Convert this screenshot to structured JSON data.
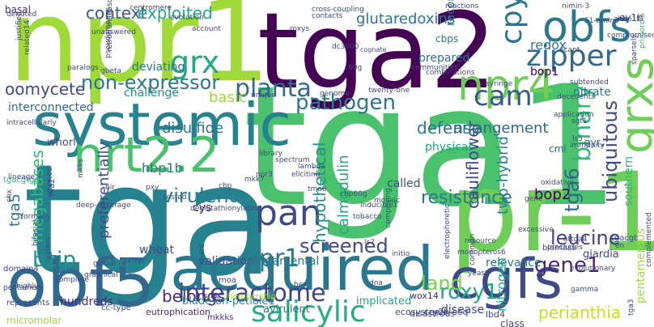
{
  "cloud": {
    "words": [
      {
        "text": "tga",
        "color": "#26828e"
      },
      {
        "text": "tga1",
        "color": "#4ac16d"
      },
      {
        "text": "tga2",
        "color": "#440154"
      },
      {
        "text": "npr1",
        "color": "#a0da39"
      },
      {
        "text": "pr-1",
        "color": "#6ece58"
      },
      {
        "text": "obf5",
        "color": "#31688e"
      },
      {
        "text": "obfs",
        "color": "#2a788e"
      },
      {
        "text": "acquired",
        "color": "#2a788e"
      },
      {
        "text": "systemic",
        "color": "#26828e"
      },
      {
        "text": "cgfs",
        "color": "#3e4a89"
      },
      {
        "text": "nrt2.2",
        "color": "#4ac16d"
      },
      {
        "text": "npr4",
        "color": "#6ece58"
      },
      {
        "text": "grxs",
        "color": "#6ece58"
      },
      {
        "text": "salicylic",
        "color": "#27ad81"
      },
      {
        "text": "interactome",
        "color": "#414487"
      },
      {
        "text": "cpyc",
        "color": "#2a788e"
      },
      {
        "text": "grx",
        "color": "#22a884"
      },
      {
        "text": "zipper",
        "color": "#31688e"
      },
      {
        "text": "cam",
        "color": "#39568c"
      },
      {
        "text": "planta",
        "color": "#31688e"
      },
      {
        "text": "pathogen",
        "color": "#2a788e"
      },
      {
        "text": "non-expressor",
        "color": "#2a788e"
      },
      {
        "text": "pan",
        "color": "#3e4a89"
      },
      {
        "text": "pr1",
        "color": "#2a788e"
      },
      {
        "text": "bzip",
        "color": "#21918c"
      },
      {
        "text": "leucine",
        "color": "#414487"
      },
      {
        "text": "gene1",
        "color": "#482878"
      },
      {
        "text": "roxy1",
        "color": "#22a884"
      },
      {
        "text": "binary",
        "color": "#35b779"
      },
      {
        "text": "tga6",
        "color": "#31688e"
      },
      {
        "text": "screened",
        "color": "#3e4a89"
      },
      {
        "text": "resistance",
        "color": "#2a788e"
      },
      {
        "text": "land",
        "color": "#7ad151"
      },
      {
        "text": "virulent",
        "color": "#26828e"
      },
      {
        "text": "belongs",
        "color": "#472d7b"
      },
      {
        "text": "disulfide",
        "color": "#2a788e"
      },
      {
        "text": "defense",
        "color": "#2a788e"
      },
      {
        "text": "ubiquitous",
        "color": "#3e4a89"
      },
      {
        "text": "hypothetical",
        "color": "#21918c"
      },
      {
        "text": "glutaredoxins",
        "color": "#2a788e"
      },
      {
        "text": "context",
        "color": "#39568c"
      },
      {
        "text": "exploited",
        "color": "#22a884"
      },
      {
        "text": "oomycete",
        "color": "#3e4a89"
      },
      {
        "text": "perianthia",
        "color": "#c8e020"
      },
      {
        "text": "cauliflower",
        "color": "#3e4a89"
      },
      {
        "text": "calmodulin",
        "color": "#22a884"
      },
      {
        "text": "arrangement",
        "color": "#31688e"
      },
      {
        "text": "basic",
        "color": "#a0da39"
      },
      {
        "text": "two-hybrid",
        "color": "#26828e"
      },
      {
        "text": "preferentially",
        "color": "#3e4a89"
      },
      {
        "text": "bop1",
        "color": "#440154"
      },
      {
        "text": "bop2",
        "color": "#440154"
      },
      {
        "text": "redox",
        "color": "#2a788e"
      },
      {
        "text": "megabases",
        "color": "#35b779"
      },
      {
        "text": "interconnected",
        "color": "#31688e"
      },
      {
        "text": "tga5",
        "color": "#2a788e"
      },
      {
        "text": "hbp1b",
        "color": "#2a788e"
      },
      {
        "text": "cys",
        "color": "#482878"
      },
      {
        "text": "wheat",
        "color": "#3e4a89"
      },
      {
        "text": "nucleus",
        "color": "#21918c"
      },
      {
        "text": "validation",
        "color": "#3e4a89"
      },
      {
        "text": "fundamental",
        "color": "#2a788e"
      },
      {
        "text": "relevance",
        "color": "#2a788e"
      },
      {
        "text": "southern",
        "color": "#35b779"
      },
      {
        "text": "physical",
        "color": "#22a884"
      },
      {
        "text": "called",
        "color": "#3e4a89"
      },
      {
        "text": "nitrogen",
        "color": "#22a884"
      },
      {
        "text": "hundreds",
        "color": "#482878"
      },
      {
        "text": "blade-on-petiole1",
        "color": "#21918c"
      },
      {
        "text": "avirulent",
        "color": "#2a788e"
      },
      {
        "text": "implicated",
        "color": "#22a884"
      },
      {
        "text": "disease",
        "color": "#3e4a89"
      },
      {
        "text": "giardia",
        "color": "#3e4a89"
      },
      {
        "text": "pentamerous",
        "color": "#a0da39"
      },
      {
        "text": "nitrate",
        "color": "#2a788e"
      },
      {
        "text": "deviating",
        "color": "#2a788e"
      },
      {
        "text": "challenge",
        "color": "#21918c"
      },
      {
        "text": "prepared",
        "color": "#2a788e"
      },
      {
        "text": "reconstituting",
        "color": "#31688e"
      },
      {
        "text": "cbps",
        "color": "#2a788e"
      },
      {
        "text": "whorl",
        "color": "#3e4a89"
      },
      {
        "text": "basal",
        "color": "#482878"
      },
      {
        "text": "cml",
        "color": "#31688e"
      },
      {
        "text": "gyr",
        "color": "#31688e"
      },
      {
        "text": "ey1h",
        "color": "#3e4a89"
      },
      {
        "text": "micromolar",
        "color": "#a0da39"
      },
      {
        "text": "class",
        "color": "#3e4a89"
      },
      {
        "text": "disastrous",
        "color": "#3e4a89"
      },
      {
        "text": "cry2h-seq",
        "color": "#3e4a89"
      },
      {
        "text": "lbd4",
        "color": "#3e4a89"
      },
      {
        "text": "ecosystems",
        "color": "#3e4a89"
      },
      {
        "text": "wox14",
        "color": "#482878"
      },
      {
        "text": "eutrophication",
        "color": "#472d7b"
      },
      {
        "text": "membership",
        "color": "#a0da39"
      },
      {
        "text": "mkkks",
        "color": "#472d7b"
      },
      {
        "text": "cc-type",
        "color": "#3e4a89"
      },
      {
        "text": "represents",
        "color": "#3e4a89"
      },
      {
        "text": "pentamers",
        "color": "#3e4a89"
      },
      {
        "text": "domain4",
        "color": "#3e4a89"
      },
      {
        "text": "tgacgtgg",
        "color": "#35b779"
      },
      {
        "text": "nia2",
        "color": "#3e4a89"
      },
      {
        "text": "moa",
        "color": "#3e4a89"
      },
      {
        "text": "hex",
        "color": "#3e4a89"
      },
      {
        "text": "dna",
        "color": "#3e4a89"
      },
      {
        "text": "yeast",
        "color": "#3e4a89"
      },
      {
        "text": "monopteros6",
        "color": "#3e4a89"
      },
      {
        "text": "biomass",
        "color": "#3e4a89"
      },
      {
        "text": "excessive",
        "color": "#3e4a89"
      },
      {
        "text": "precludes",
        "color": "#3e4a89"
      },
      {
        "text": "attga4",
        "color": "#3e4a89"
      },
      {
        "text": "tgacgt",
        "color": "#3e4a89"
      },
      {
        "text": "en",
        "color": "#3e4a89"
      },
      {
        "text": "gamma",
        "color": "#3e4a89"
      },
      {
        "text": "complemented",
        "color": "#3e4a89"
      },
      {
        "text": "evolutionary",
        "color": "#3e4a89"
      },
      {
        "text": "immunity",
        "color": "#3e4a89"
      },
      {
        "text": "ls5",
        "color": "#3e4a89"
      },
      {
        "text": "sgt1",
        "color": "#3e4a89"
      },
      {
        "text": "application",
        "color": "#3e4a89"
      },
      {
        "text": "decedents",
        "color": "#3e4a89"
      },
      {
        "text": "subtended",
        "color": "#3e4a89"
      },
      {
        "text": "scant",
        "color": "#3e4a89"
      },
      {
        "text": "51-amino",
        "color": "#3e4a89"
      },
      {
        "text": "ahbp1b",
        "color": "#3e4a89"
      },
      {
        "text": "nimin-3",
        "color": "#3e4a89"
      },
      {
        "text": "reactions",
        "color": "#3e4a89"
      },
      {
        "text": "combinations",
        "color": "#3e4a89"
      },
      {
        "text": "communities",
        "color": "#3e4a89"
      },
      {
        "text": "syringe",
        "color": "#3e4a89"
      },
      {
        "text": "compromised",
        "color": "#3e4a89"
      },
      {
        "text": "sparsely",
        "color": "#3e4a89"
      },
      {
        "text": "primordia",
        "color": "#35b779"
      },
      {
        "text": "cross-coupling",
        "color": "#3e4a89"
      },
      {
        "text": "contacts",
        "color": "#3e4a89"
      },
      {
        "text": "roxys",
        "color": "#3e4a89"
      },
      {
        "text": "dc3000",
        "color": "#3e4a89"
      },
      {
        "text": "cognate",
        "color": "#3e4a89"
      },
      {
        "text": "60g",
        "color": "#3e4a89"
      },
      {
        "text": "account",
        "color": "#3e4a89"
      },
      {
        "text": "evolution",
        "color": "#3e4a89"
      },
      {
        "text": "centromere",
        "color": "#3e4a89"
      },
      {
        "text": "denoted",
        "color": "#3e4a89"
      },
      {
        "text": "justified",
        "color": "#3e4a89"
      },
      {
        "text": "unanswered",
        "color": "#3e4a89"
      },
      {
        "text": "gbeta",
        "color": "#3e4a89"
      },
      {
        "text": "paralogs",
        "color": "#3e4a89"
      },
      {
        "text": "pseudomonas",
        "color": "#3e4a89"
      },
      {
        "text": "retrotransposons",
        "color": "#3e4a89"
      },
      {
        "text": "intracellularly",
        "color": "#3e4a89"
      },
      {
        "text": "related14",
        "color": "#3e4a89"
      },
      {
        "text": "npr3",
        "color": "#3e4a89"
      },
      {
        "text": "deep-coverage",
        "color": "#3e4a89"
      },
      {
        "text": "lineage",
        "color": "#3e4a89"
      },
      {
        "text": "mkks",
        "color": "#3e4a89"
      },
      {
        "text": "global",
        "color": "#3e4a89"
      },
      {
        "text": "nir",
        "color": "#3e4a89"
      },
      {
        "text": "pxy",
        "color": "#3e4a89"
      },
      {
        "text": "tested",
        "color": "#3e4a89"
      },
      {
        "text": "deglutathionylation",
        "color": "#3e4a89"
      },
      {
        "text": "sni1",
        "color": "#3e4a89"
      },
      {
        "text": "graphical",
        "color": "#3e4a89"
      },
      {
        "text": "bifacial",
        "color": "#3e4a89"
      },
      {
        "text": "formally",
        "color": "#3e4a89"
      },
      {
        "text": "retested",
        "color": "#3e4a89"
      },
      {
        "text": "xylem",
        "color": "#3e4a89"
      },
      {
        "text": "chx",
        "color": "#3e4a89"
      },
      {
        "text": "complete",
        "color": "#3e4a89"
      },
      {
        "text": "highly",
        "color": "#3e4a89"
      },
      {
        "text": "cbp60g",
        "color": "#3e4a89"
      },
      {
        "text": "mosaic",
        "color": "#3e4a89"
      },
      {
        "text": "tmo6",
        "color": "#3e4a89"
      },
      {
        "text": "lambda",
        "color": "#3e4a89"
      },
      {
        "text": "eliciting",
        "color": "#3e4a89"
      },
      {
        "text": "spectrum",
        "color": "#3e4a89"
      },
      {
        "text": "library",
        "color": "#3e4a89"
      },
      {
        "text": "mkk7",
        "color": "#3e4a89"
      },
      {
        "text": "cbp",
        "color": "#3e4a89"
      },
      {
        "text": "unique",
        "color": "#3e4a89"
      },
      {
        "text": "genome",
        "color": "#3e4a89"
      },
      {
        "text": "twenty-one",
        "color": "#3e4a89"
      },
      {
        "text": "ls7",
        "color": "#3e4a89"
      },
      {
        "text": "inducible1",
        "color": "#3e4a89"
      },
      {
        "text": "tobacco",
        "color": "#3e4a89"
      },
      {
        "text": "comprising",
        "color": "#3e4a89"
      },
      {
        "text": "initio",
        "color": "#3e4a89"
      },
      {
        "text": "electrophoretic",
        "color": "#3e4a89"
      },
      {
        "text": "common",
        "color": "#3e4a89"
      },
      {
        "text": "resource",
        "color": "#3e4a89"
      },
      {
        "text": "share",
        "color": "#3e4a89"
      },
      {
        "text": "gene",
        "color": "#3e4a89"
      },
      {
        "text": "oxidative",
        "color": "#3e4a89"
      },
      {
        "text": "tga3",
        "color": "#3e4a89"
      },
      {
        "text": "pg13",
        "color": "#3e4a89"
      },
      {
        "text": "receptors",
        "color": "#3e4a89"
      },
      {
        "text": "radiolabeled",
        "color": "#3e4a89"
      }
    ]
  }
}
